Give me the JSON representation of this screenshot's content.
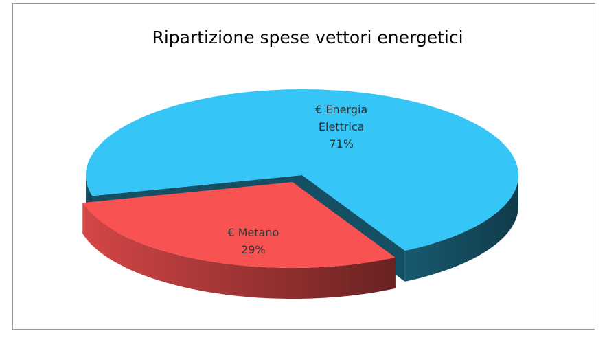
{
  "chart_data": {
    "type": "pie3d",
    "title": "Ripartizione spese vettori energetici",
    "categories": [
      "€ Energia Elettrica",
      "€ Metano"
    ],
    "values": [
      71,
      29
    ],
    "value_labels": [
      "71%",
      "29%"
    ],
    "colors": [
      "#35c6f7",
      "#f95252"
    ]
  }
}
